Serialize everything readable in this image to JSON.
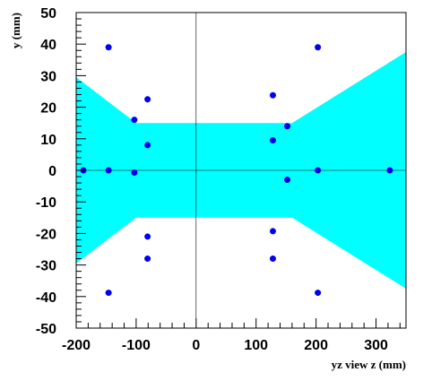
{
  "chart_data": {
    "type": "scatter",
    "title": "",
    "xlabel": "yz view  z (mm)",
    "ylabel": "y (mm)",
    "xlim": [
      -200,
      350
    ],
    "ylim": [
      -50,
      50
    ],
    "xticks": [
      -200,
      -100,
      0,
      100,
      200,
      300
    ],
    "yticks": [
      -50,
      -40,
      -30,
      -20,
      -10,
      0,
      10,
      20,
      30,
      40,
      50
    ],
    "grid": false,
    "zero_lines": true,
    "acceptance_region": {
      "color": "#00ffff",
      "polygon": [
        [
          -200,
          29.5
        ],
        [
          -100,
          15
        ],
        [
          160,
          15
        ],
        [
          350,
          37.5
        ],
        [
          350,
          -37.5
        ],
        [
          160,
          -15
        ],
        [
          -100,
          -15
        ],
        [
          -200,
          -29.5
        ]
      ]
    },
    "points_color": "#0000ee",
    "points": [
      {
        "x": -146,
        "y": 39
      },
      {
        "x": -81,
        "y": 22.5
      },
      {
        "x": -103,
        "y": 16
      },
      {
        "x": -81,
        "y": 8
      },
      {
        "x": -188,
        "y": 0
      },
      {
        "x": -146,
        "y": 0
      },
      {
        "x": -103,
        "y": -0.7
      },
      {
        "x": -81,
        "y": -21
      },
      {
        "x": -81,
        "y": -28
      },
      {
        "x": -146,
        "y": -38.8
      },
      {
        "x": 128,
        "y": 23.8
      },
      {
        "x": 152,
        "y": 14
      },
      {
        "x": 128,
        "y": 9.5
      },
      {
        "x": 152,
        "y": -3
      },
      {
        "x": 128,
        "y": -19.3
      },
      {
        "x": 128,
        "y": -28
      },
      {
        "x": 203,
        "y": 39
      },
      {
        "x": 203,
        "y": 0
      },
      {
        "x": 323,
        "y": 0
      },
      {
        "x": 203,
        "y": -38.8
      }
    ]
  }
}
